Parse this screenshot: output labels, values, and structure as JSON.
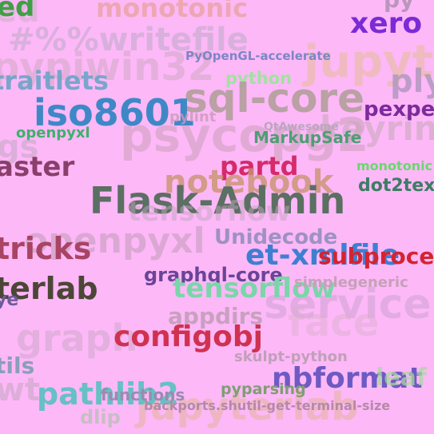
{
  "words": [
    {
      "text": "psycopg2",
      "color": "#c9a0b8"
    },
    {
      "text": "jupyter",
      "color": "#e7bd9e"
    },
    {
      "text": "service",
      "color": "#c8a2d0"
    },
    {
      "text": "pypiwin32",
      "color": "#c6a6b8"
    },
    {
      "text": "openpyxl",
      "color": "#b99ab0"
    },
    {
      "text": "keyring",
      "color": "#c4a9b5"
    },
    {
      "text": "graph",
      "color": "#c3a6c0"
    },
    {
      "text": "face",
      "color": "#d8b0c8"
    },
    {
      "text": "dlip",
      "color": "#b6c0b2"
    },
    {
      "text": "jupyterlab",
      "color": "#e5b6a1"
    },
    {
      "text": "ed",
      "color": "#c9b0c3"
    },
    {
      "text": "ed",
      "color": "#3f9f46"
    },
    {
      "text": "monotonic",
      "color": "#e9a4a2"
    },
    {
      "text": "#%%writefile",
      "color": "#b4a9c1"
    },
    {
      "text": "traitlets",
      "color": "#64a4c4"
    },
    {
      "text": "xero",
      "color": "#7b2bd6"
    },
    {
      "text": "py",
      "color": "#9b8aa0"
    },
    {
      "text": "ply",
      "color": "#a895b8"
    },
    {
      "text": "PyOpenGL-accelerate",
      "color": "#7d86c4"
    },
    {
      "text": "python",
      "color": "#a1e29f"
    },
    {
      "text": "sql-core",
      "color": "#ae9e96"
    },
    {
      "text": "iso8601",
      "color": "#3f88c6"
    },
    {
      "text": "pylint",
      "color": "#c99bb8"
    },
    {
      "text": "pexpect",
      "color": "#7c2a9c"
    },
    {
      "text": "openpyxl",
      "color": "#3db16a"
    },
    {
      "text": "QtAwesome",
      "color": "#bba6c0"
    },
    {
      "text": "MarkupSafe",
      "color": "#4e9e74"
    },
    {
      "text": "gs",
      "color": "#c1a8c0"
    },
    {
      "text": "aster",
      "color": "#8a3f6b"
    },
    {
      "text": "partd",
      "color": "#d62a6a"
    },
    {
      "text": "monotonic",
      "color": "#68d86d"
    },
    {
      "text": "notebook",
      "color": "#c8956f"
    },
    {
      "text": "dot2tex",
      "color": "#3c7d62"
    },
    {
      "text": "Flask-Admin",
      "color": "#5b6f62"
    },
    {
      "text": "tensorflow",
      "color": "#c2a6c0"
    },
    {
      "text": "Unidecode",
      "color": "#9e92c2"
    },
    {
      "text": "et-xmlfile",
      "color": "#3f7fd0"
    },
    {
      "text": "subprocess",
      "color": "#d32431"
    },
    {
      "text": "tricks",
      "color": "#a84464"
    },
    {
      "text": "graphql-core",
      "color": "#6a4496"
    },
    {
      "text": "terlab",
      "color": "#4c4636"
    },
    {
      "text": "tensorflow",
      "color": "#7ad6a8"
    },
    {
      "text": "simplegeneric",
      "color": "#c4a2b8"
    },
    {
      "text": "appdirs",
      "color": "#c9a0c0"
    },
    {
      "text": "configobj",
      "color": "#cf3250"
    },
    {
      "text": "skulpt-python",
      "color": "#c0a0b8"
    },
    {
      "text": "tils",
      "color": "#8a9fb8"
    },
    {
      "text": "nbformat",
      "color": "#6e5ac2"
    },
    {
      "text": "pathlib2",
      "color": "#66c0c4"
    },
    {
      "text": "functions",
      "color": "#9a8bb0"
    },
    {
      "text": "pyparsing",
      "color": "#7f9e73"
    },
    {
      "text": "backports.shutil-get-terminal-size",
      "color": "#b48aa6"
    },
    {
      "text": "wt",
      "color": "#c2a6c0"
    },
    {
      "text": "ye",
      "color": "#6f5a9e"
    },
    {
      "text": "leaf",
      "color": "#a8d8a0"
    }
  ]
}
